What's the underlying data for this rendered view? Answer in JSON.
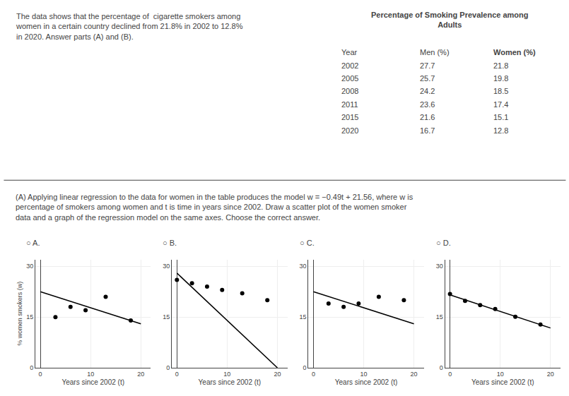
{
  "annotations": [
    "The data shows that the percentage of  cigarette smokers among\nwomen in a certain country declined from 21.8% in 2002 to 12.8%\nin 2020. Answer parts (A) and (B).",
    "(A) Applying linear regression to the data for women in the table produces the model w = −0.49t + 21.56, where w is\npercentage of smokers among women and t is time in years since 2002. Draw a scatter plot of the women smoker\ndata and a graph of the regression model on the same axes. Choose the correct answer."
  ],
  "table": {
    "title": "Percentage of Smoking Prevalence among\nAdults",
    "headers": [
      "Year",
      "Men (%)",
      "Women (%)"
    ],
    "rows": [
      [
        2002,
        27.7,
        21.8
      ],
      [
        2005,
        25.7,
        19.8
      ],
      [
        2008,
        24.2,
        18.5
      ],
      [
        2011,
        23.6,
        17.4
      ],
      [
        2015,
        21.6,
        15.1
      ],
      [
        2020,
        16.7,
        12.8
      ]
    ]
  },
  "chart_data": [
    {
      "type": "scatter",
      "title": "○ A.",
      "x_label": "Years since 2002 (t)",
      "y_label": "% women smokers (w)",
      "xlim": [
        -1,
        22
      ],
      "xticks": [
        0,
        10,
        20
      ],
      "ylim": [
        0,
        32
      ],
      "yticks": [
        0,
        15,
        30
      ],
      "grid": true,
      "series": [
        {
          "type": "scatter",
          "color": "#000000",
          "x": [
            3,
            6,
            9,
            13,
            18
          ],
          "values": [
            15,
            18,
            17,
            21,
            14
          ]
        },
        {
          "type": "line",
          "color": "#000000",
          "x": [
            0,
            20
          ],
          "values": [
            22.5,
            13.0
          ]
        }
      ]
    },
    {
      "type": "scatter",
      "title": "○ B.",
      "x_label": "Years since 2002 (t)",
      "xlim": [
        -1,
        22
      ],
      "xticks": [
        0,
        10,
        20
      ],
      "ylim": [
        0,
        32
      ],
      "yticks": [
        0,
        15,
        30
      ],
      "grid": true,
      "series": [
        {
          "type": "scatter",
          "color": "#000000",
          "x": [
            0,
            3,
            6,
            9,
            13,
            18
          ],
          "values": [
            26,
            25,
            24,
            23,
            22,
            20
          ]
        },
        {
          "type": "line",
          "color": "#000000",
          "x": [
            0,
            20
          ],
          "values": [
            28,
            0
          ]
        }
      ]
    },
    {
      "type": "scatter",
      "title": "○ C.",
      "x_label": "Years since 2002 (t)",
      "xlim": [
        -1,
        22
      ],
      "xticks": [
        0,
        10,
        20
      ],
      "ylim": [
        0,
        32
      ],
      "yticks": [
        0,
        15,
        30
      ],
      "grid": true,
      "series": [
        {
          "type": "scatter",
          "color": "#000000",
          "x": [
            3,
            6,
            9,
            13,
            18
          ],
          "values": [
            19,
            18,
            19,
            21,
            20
          ]
        },
        {
          "type": "line",
          "color": "#000000",
          "x": [
            0,
            20
          ],
          "values": [
            22.5,
            13.0
          ]
        }
      ]
    },
    {
      "type": "scatter",
      "title": "○ D.",
      "x_label": "Years since 2002 (t)",
      "xlim": [
        -1,
        22
      ],
      "xticks": [
        0,
        10,
        20
      ],
      "ylim": [
        0,
        32
      ],
      "yticks": [
        0,
        15,
        30
      ],
      "grid": true,
      "series": [
        {
          "type": "scatter",
          "color": "#000000",
          "x": [
            0,
            3,
            6,
            9,
            13,
            18
          ],
          "values": [
            21.8,
            19.8,
            18.5,
            17.4,
            15.1,
            12.8
          ]
        },
        {
          "type": "line",
          "color": "#000000",
          "x": [
            0,
            20
          ],
          "values": [
            21.56,
            11.76
          ]
        }
      ]
    }
  ]
}
